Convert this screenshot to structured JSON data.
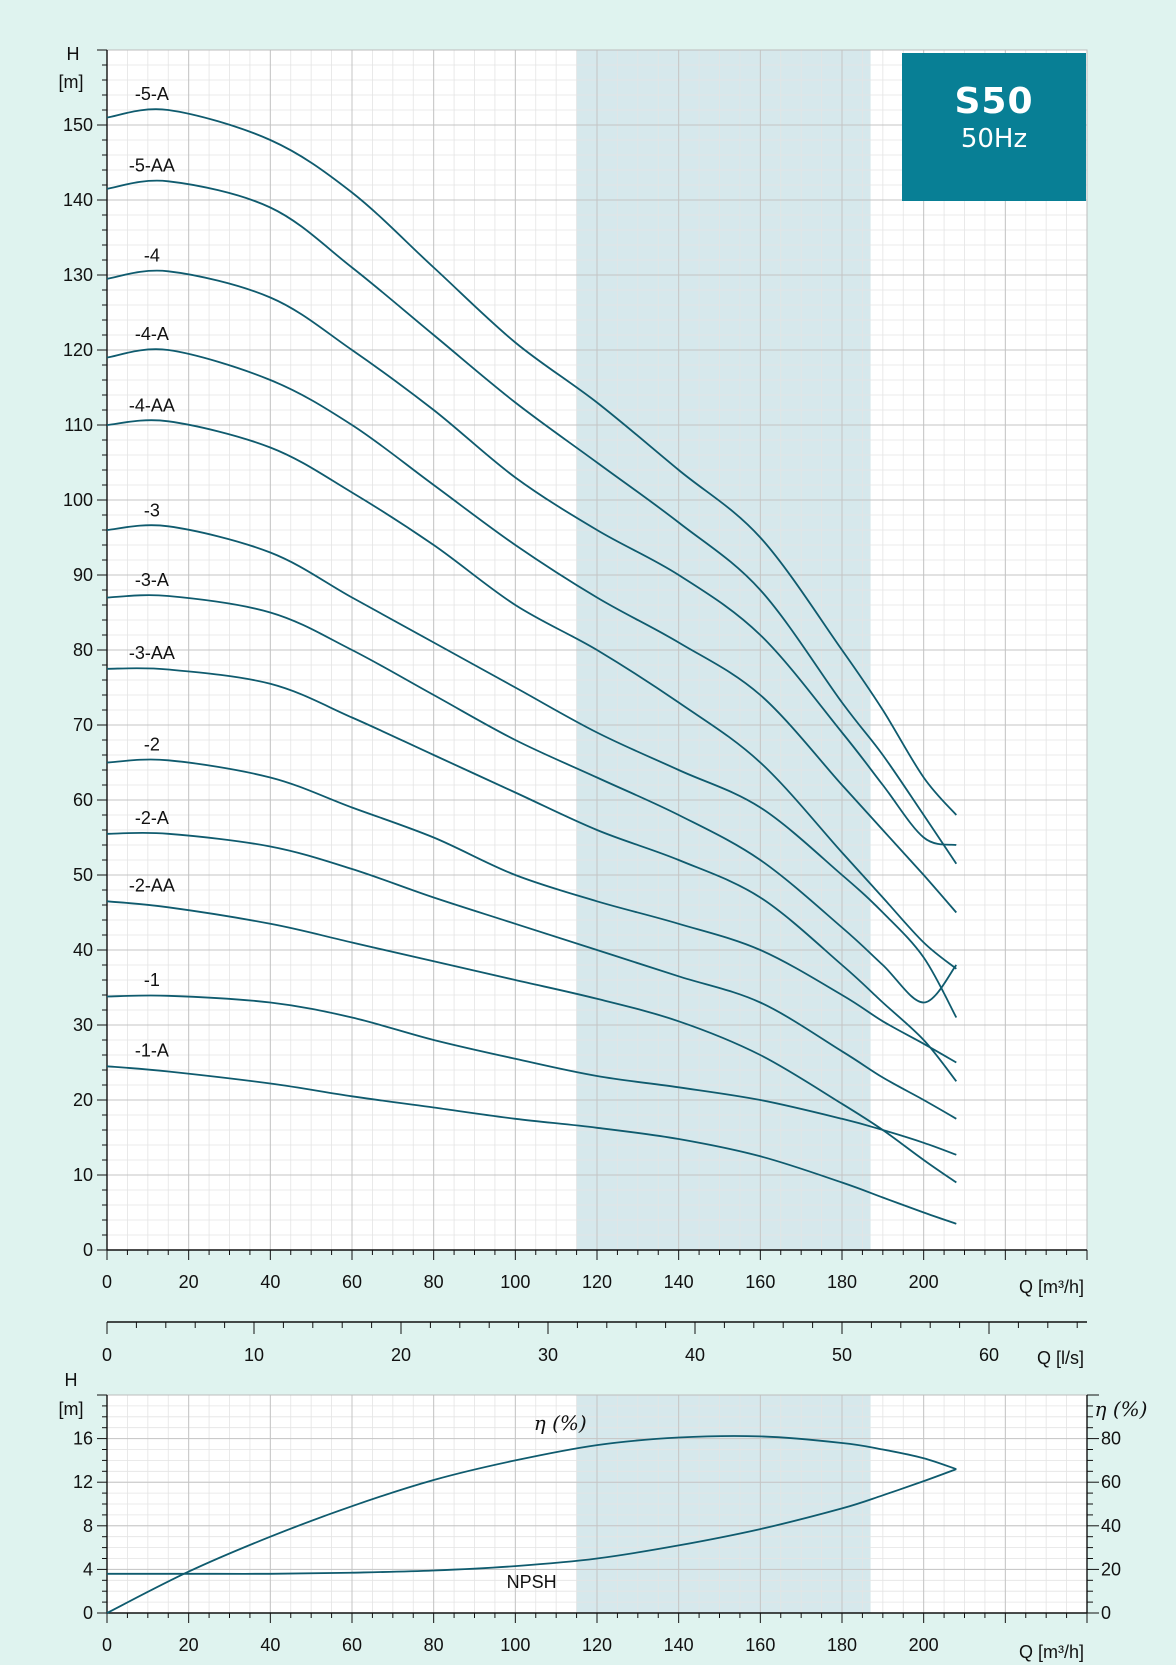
{
  "badge": {
    "model": "S50",
    "frequency": "50Hz"
  },
  "colors": {
    "background": "#dff3ef",
    "plot_bg": "#ffffff",
    "curve": "#0f5b6e",
    "band": "#d6e8ec",
    "badge": "#087f95"
  },
  "chart_data": [
    {
      "type": "line",
      "xlabel": "Q [m³/h]",
      "ylabel": "H\n[m]",
      "xlim": [
        0,
        240
      ],
      "ylim": [
        0,
        160
      ],
      "x_ticks": [
        0,
        20,
        40,
        60,
        80,
        100,
        120,
        140,
        160,
        180,
        200
      ],
      "y_ticks": [
        0,
        10,
        20,
        30,
        40,
        50,
        60,
        70,
        80,
        90,
        100,
        110,
        120,
        130,
        140,
        150
      ],
      "highlight_range_x": [
        115,
        187
      ],
      "secondary_xaxis": {
        "label": "Q [l/s]",
        "ticks": [
          0,
          10,
          20,
          30,
          40,
          50,
          60
        ]
      },
      "grid": true,
      "series": [
        {
          "name": "-5-A",
          "x": [
            0,
            15,
            40,
            60,
            80,
            100,
            120,
            140,
            160,
            180,
            190,
            200,
            208
          ],
          "y": [
            151,
            152,
            148,
            141,
            131,
            121,
            113,
            104,
            95,
            80,
            72,
            63,
            58
          ]
        },
        {
          "name": "-5-AA",
          "x": [
            0,
            15,
            40,
            60,
            80,
            100,
            120,
            140,
            160,
            180,
            190,
            200,
            208
          ],
          "y": [
            141.5,
            142.5,
            139,
            131,
            122,
            113,
            105,
            97,
            88,
            73,
            66,
            58,
            51.5
          ]
        },
        {
          "name": "-4",
          "x": [
            0,
            15,
            40,
            60,
            80,
            100,
            120,
            140,
            160,
            180,
            190,
            200,
            208
          ],
          "y": [
            129.5,
            130.5,
            127,
            120,
            112,
            103,
            96,
            90,
            82,
            69,
            62,
            55,
            54
          ]
        },
        {
          "name": "-4-A",
          "x": [
            0,
            15,
            40,
            60,
            80,
            100,
            120,
            140,
            160,
            180,
            190,
            200,
            208
          ],
          "y": [
            119,
            120,
            116,
            110,
            102,
            94,
            87,
            81,
            74,
            62,
            56,
            50,
            45
          ]
        },
        {
          "name": "-4-AA",
          "x": [
            0,
            15,
            40,
            60,
            80,
            100,
            120,
            140,
            160,
            180,
            190,
            200,
            208
          ],
          "y": [
            110,
            110.5,
            107,
            101,
            94,
            86,
            80,
            73,
            65,
            53,
            47,
            41,
            37.5
          ]
        },
        {
          "name": "-3",
          "x": [
            0,
            15,
            40,
            60,
            80,
            100,
            120,
            140,
            160,
            180,
            190,
            200,
            208
          ],
          "y": [
            96,
            96.5,
            93,
            87,
            81,
            75,
            69,
            64,
            59,
            50,
            45,
            39,
            31
          ]
        },
        {
          "name": "-3-A",
          "x": [
            0,
            15,
            40,
            60,
            80,
            100,
            120,
            140,
            160,
            180,
            190,
            200,
            208
          ],
          "y": [
            87,
            87.2,
            85,
            80,
            74,
            68,
            63,
            58,
            52,
            43,
            38,
            33,
            38
          ]
        },
        {
          "name": "-3-AA",
          "x": [
            0,
            15,
            40,
            60,
            80,
            100,
            120,
            140,
            160,
            180,
            190,
            200,
            208
          ],
          "y": [
            77.5,
            77.4,
            75.5,
            71,
            66,
            61,
            56,
            52,
            47,
            38,
            33,
            28,
            22.5
          ]
        },
        {
          "name": "-2",
          "x": [
            0,
            15,
            40,
            60,
            80,
            100,
            120,
            140,
            160,
            180,
            190,
            200,
            208
          ],
          "y": [
            65,
            65.3,
            63,
            59,
            55,
            50,
            46.5,
            43.5,
            40,
            34,
            30.5,
            27.5,
            25
          ]
        },
        {
          "name": "-2-A",
          "x": [
            0,
            15,
            40,
            60,
            80,
            100,
            120,
            140,
            160,
            180,
            190,
            200,
            208
          ],
          "y": [
            55.5,
            55.5,
            53.8,
            50.8,
            47,
            43.5,
            40,
            36.5,
            33,
            26.5,
            23,
            20,
            17.5
          ]
        },
        {
          "name": "-2-AA",
          "x": [
            0,
            15,
            40,
            60,
            80,
            100,
            120,
            140,
            160,
            180,
            190,
            200,
            208
          ],
          "y": [
            46.5,
            45.7,
            43.5,
            41,
            38.5,
            36,
            33.5,
            30.5,
            26,
            19.5,
            16,
            12,
            9
          ]
        },
        {
          "name": "-1",
          "x": [
            0,
            15,
            40,
            60,
            80,
            100,
            120,
            140,
            160,
            180,
            190,
            200,
            208
          ],
          "y": [
            33.8,
            33.9,
            33,
            31,
            28,
            25.5,
            23.2,
            21.7,
            20,
            17.5,
            16,
            14.3,
            12.7
          ]
        },
        {
          "name": "-1-A",
          "x": [
            0,
            15,
            40,
            60,
            80,
            100,
            120,
            140,
            160,
            180,
            190,
            200,
            208
          ],
          "y": [
            24.5,
            23.8,
            22.2,
            20.5,
            19,
            17.5,
            16.3,
            14.8,
            12.5,
            9,
            7,
            5,
            3.5
          ]
        }
      ]
    },
    {
      "type": "line",
      "xlabel": "Q [m³/h]",
      "ylabel": "H\n[m]",
      "y2label": "η (%)",
      "xlim": [
        0,
        240
      ],
      "ylim": [
        0,
        20
      ],
      "y2lim": [
        0,
        100
      ],
      "x_ticks": [
        0,
        20,
        40,
        60,
        80,
        100,
        120,
        140,
        160,
        180,
        200
      ],
      "y_ticks": [
        0,
        4,
        8,
        12,
        16
      ],
      "y2_ticks": [
        0,
        20,
        40,
        60,
        80
      ],
      "highlight_range_x": [
        115,
        187
      ],
      "grid": true,
      "series": [
        {
          "name": "NPSH",
          "axis": "left",
          "x": [
            0,
            20,
            40,
            60,
            80,
            100,
            120,
            140,
            160,
            180,
            190,
            200,
            208
          ],
          "y": [
            3.6,
            3.6,
            3.6,
            3.7,
            3.9,
            4.3,
            5,
            6.2,
            7.7,
            9.6,
            10.8,
            12.1,
            13.2
          ]
        },
        {
          "name": "η (%)",
          "axis": "right",
          "x": [
            0,
            20,
            40,
            60,
            80,
            100,
            120,
            140,
            160,
            180,
            190,
            200,
            208
          ],
          "y": [
            0,
            19,
            35,
            49,
            61,
            70,
            77,
            80.5,
            81,
            78,
            75,
            71,
            66
          ]
        }
      ]
    }
  ]
}
